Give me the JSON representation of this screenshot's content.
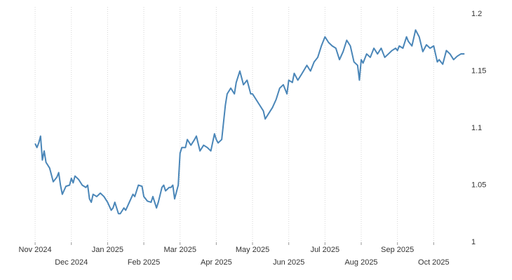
{
  "chart_data": {
    "type": "line",
    "x": [
      0,
      0.05,
      0.1,
      0.15,
      0.2,
      0.25,
      0.3,
      0.4,
      0.5,
      0.6,
      0.65,
      0.7,
      0.75,
      0.85,
      0.95,
      1.0,
      1.05,
      1.1,
      1.2,
      1.3,
      1.4,
      1.45,
      1.5,
      1.55,
      1.6,
      1.7,
      1.8,
      1.9,
      2.0,
      2.1,
      2.15,
      2.2,
      2.3,
      2.35,
      2.45,
      2.5,
      2.6,
      2.7,
      2.75,
      2.85,
      2.95,
      3.0,
      3.1,
      3.2,
      3.25,
      3.35,
      3.4,
      3.5,
      3.55,
      3.6,
      3.7,
      3.75,
      3.8,
      3.85,
      3.95,
      4.0,
      4.05,
      4.15,
      4.2,
      4.3,
      4.4,
      4.45,
      4.55,
      4.65,
      4.75,
      4.85,
      4.95,
      5.0,
      5.05,
      5.15,
      5.25,
      5.3,
      5.4,
      5.5,
      5.55,
      5.65,
      5.75,
      5.85,
      5.95,
      6.0,
      6.1,
      6.2,
      6.3,
      6.35,
      6.45,
      6.55,
      6.65,
      6.75,
      6.85,
      6.95,
      7.0,
      7.1,
      7.15,
      7.25,
      7.35,
      7.5,
      7.6,
      7.7,
      7.8,
      7.9,
      8.0,
      8.1,
      8.2,
      8.3,
      8.4,
      8.5,
      8.6,
      8.7,
      8.8,
      8.9,
      8.95,
      9.0,
      9.05,
      9.15,
      9.25,
      9.35,
      9.45,
      9.55,
      9.65,
      9.75,
      9.85,
      9.95,
      10.0,
      10.05,
      10.15,
      10.25,
      10.3,
      10.4,
      10.5,
      10.6,
      10.7,
      10.8,
      10.9,
      11.0,
      11.1,
      11.15,
      11.25,
      11.35,
      11.45,
      11.55,
      11.65,
      11.75,
      11.85
    ],
    "series": [
      {
        "color": "#4a86b8",
        "values": [
          1.0865,
          1.083,
          1.087,
          1.093,
          1.072,
          1.08,
          1.07,
          1.065,
          1.053,
          1.057,
          1.061,
          1.05,
          1.042,
          1.049,
          1.05,
          1.056,
          1.052,
          1.058,
          1.055,
          1.05,
          1.048,
          1.05,
          1.038,
          1.035,
          1.042,
          1.04,
          1.043,
          1.04,
          1.035,
          1.028,
          1.03,
          1.035,
          1.025,
          1.025,
          1.03,
          1.028,
          1.035,
          1.042,
          1.04,
          1.05,
          1.049,
          1.04,
          1.036,
          1.035,
          1.04,
          1.03,
          1.035,
          1.048,
          1.05,
          1.045,
          1.048,
          1.048,
          1.05,
          1.038,
          1.05,
          1.078,
          1.083,
          1.083,
          1.09,
          1.085,
          1.09,
          1.093,
          1.08,
          1.085,
          1.083,
          1.08,
          1.095,
          1.09,
          1.087,
          1.09,
          1.12,
          1.13,
          1.135,
          1.13,
          1.14,
          1.15,
          1.138,
          1.142,
          1.13,
          1.13,
          1.125,
          1.12,
          1.115,
          1.108,
          1.113,
          1.118,
          1.125,
          1.135,
          1.138,
          1.13,
          1.142,
          1.14,
          1.148,
          1.142,
          1.147,
          1.155,
          1.15,
          1.158,
          1.162,
          1.172,
          1.18,
          1.175,
          1.172,
          1.17,
          1.16,
          1.167,
          1.177,
          1.172,
          1.158,
          1.155,
          1.142,
          1.16,
          1.157,
          1.165,
          1.162,
          1.17,
          1.165,
          1.17,
          1.162,
          1.165,
          1.168,
          1.17,
          1.168,
          1.172,
          1.17,
          1.18,
          1.176,
          1.172,
          1.186,
          1.18,
          1.167,
          1.173,
          1.17,
          1.172,
          1.158,
          1.16,
          1.156,
          1.168,
          1.165,
          1.16,
          1.163,
          1.165,
          1.165
        ]
      }
    ],
    "xlim": [
      -0.35,
      12.0
    ],
    "xticks": [
      {
        "value": 0,
        "label": "Nov 2024"
      },
      {
        "value": 1,
        "label": "Dec 2024"
      },
      {
        "value": 2,
        "label": "Jan 2025"
      },
      {
        "value": 3,
        "label": "Feb 2025"
      },
      {
        "value": 4,
        "label": "Mar 2025"
      },
      {
        "value": 5,
        "label": "Apr 2025"
      },
      {
        "value": 6,
        "label": "May 2025"
      },
      {
        "value": 7,
        "label": "Jun 2025"
      },
      {
        "value": 8,
        "label": "Jul 2025"
      },
      {
        "value": 9,
        "label": "Aug 2025"
      },
      {
        "value": 10,
        "label": "Sep 2025"
      },
      {
        "value": 11,
        "label": "Oct 2025"
      }
    ],
    "ylim": [
      1,
      1.2
    ],
    "yticks": [
      1,
      1.05,
      1.1,
      1.15,
      1.2
    ],
    "grid": true
  }
}
